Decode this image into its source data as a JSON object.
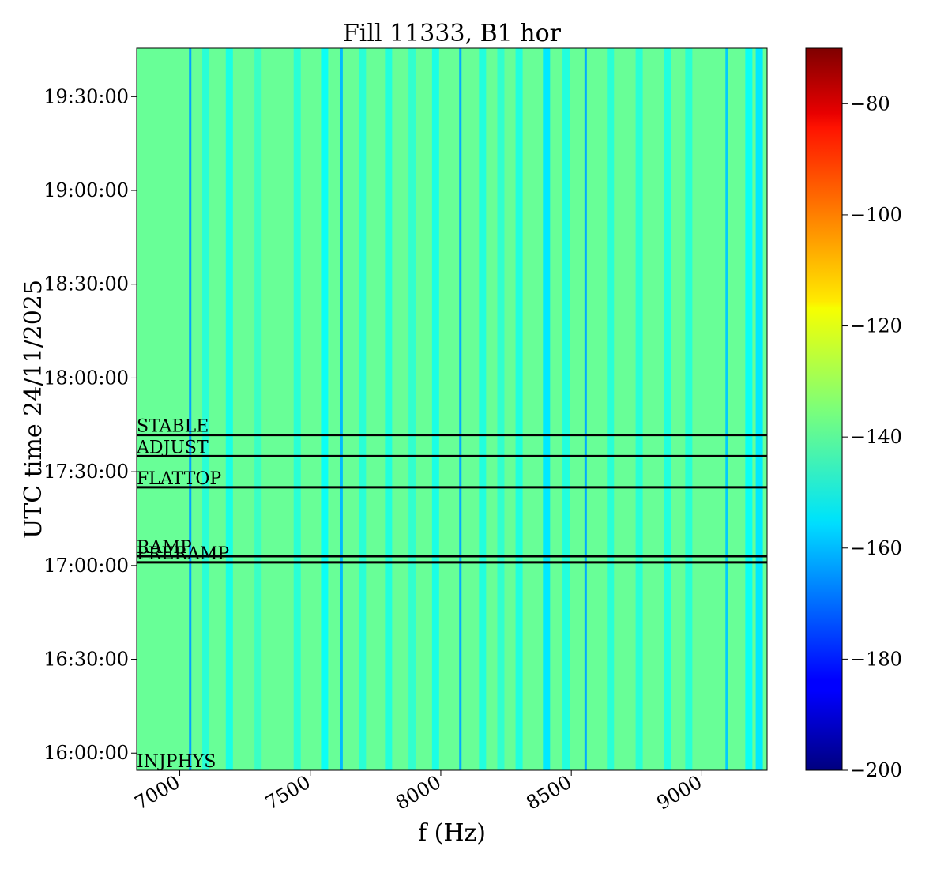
{
  "chart_data": {
    "type": "heatmap",
    "title": "Fill 11333, B1 hor",
    "xlabel": "f (Hz)",
    "ylabel": "UTC time 24/11/2025",
    "xlim": [
      6835,
      9250
    ],
    "ylim": [
      "15:54:30",
      "19:45:30"
    ],
    "x_ticks": [
      {
        "value": 7000,
        "label": "7000"
      },
      {
        "value": 7500,
        "label": "7500"
      },
      {
        "value": 8000,
        "label": "8000"
      },
      {
        "value": 8500,
        "label": "8500"
      },
      {
        "value": 9000,
        "label": "9000"
      }
    ],
    "y_ticks": [
      {
        "value": "16:00:00",
        "label": "16:00:00"
      },
      {
        "value": "16:30:00",
        "label": "16:30:00"
      },
      {
        "value": "17:00:00",
        "label": "17:00:00"
      },
      {
        "value": "17:30:00",
        "label": "17:30:00"
      },
      {
        "value": "18:00:00",
        "label": "18:00:00"
      },
      {
        "value": "18:30:00",
        "label": "18:30:00"
      },
      {
        "value": "19:00:00",
        "label": "19:00:00"
      },
      {
        "value": "19:30:00",
        "label": "19:30:00"
      }
    ],
    "colormap": "jet",
    "colorbar": {
      "range": [
        -200,
        -70
      ],
      "ticks": [
        {
          "value": -80,
          "label": "−80"
        },
        {
          "value": -100,
          "label": "−100"
        },
        {
          "value": -120,
          "label": "−120"
        },
        {
          "value": -140,
          "label": "−140"
        },
        {
          "value": -160,
          "label": "−160"
        },
        {
          "value": -180,
          "label": "−180"
        },
        {
          "value": -200,
          "label": "−200"
        }
      ]
    },
    "background_level": -138,
    "column_levels": [
      {
        "f": 7040,
        "value": -163
      },
      {
        "f": 7100,
        "value": -146
      },
      {
        "f": 7190,
        "value": -148
      },
      {
        "f": 7300,
        "value": -144
      },
      {
        "f": 7450,
        "value": -146
      },
      {
        "f": 7555,
        "value": -150
      },
      {
        "f": 7620,
        "value": -160
      },
      {
        "f": 7700,
        "value": -146
      },
      {
        "f": 7800,
        "value": -147
      },
      {
        "f": 7890,
        "value": -145
      },
      {
        "f": 7980,
        "value": -148
      },
      {
        "f": 8075,
        "value": -162
      },
      {
        "f": 8160,
        "value": -147
      },
      {
        "f": 8230,
        "value": -145
      },
      {
        "f": 8300,
        "value": -147
      },
      {
        "f": 8405,
        "value": -154
      },
      {
        "f": 8480,
        "value": -147
      },
      {
        "f": 8555,
        "value": -162
      },
      {
        "f": 8650,
        "value": -146
      },
      {
        "f": 8760,
        "value": -146
      },
      {
        "f": 8870,
        "value": -147
      },
      {
        "f": 8950,
        "value": -146
      },
      {
        "f": 9095,
        "value": -158
      },
      {
        "f": 9180,
        "value": -150
      },
      {
        "f": 9220,
        "value": -154
      }
    ],
    "events": [
      {
        "label": "INJPHYS",
        "time": "15:54:30"
      },
      {
        "label": "PRERAMP",
        "time": "17:01:00"
      },
      {
        "label": "RAMP",
        "time": "17:03:00"
      },
      {
        "label": "FLATTOP",
        "time": "17:25:00"
      },
      {
        "label": "ADJUST",
        "time": "17:35:00"
      },
      {
        "label": "STABLE",
        "time": "17:41:45"
      }
    ]
  }
}
